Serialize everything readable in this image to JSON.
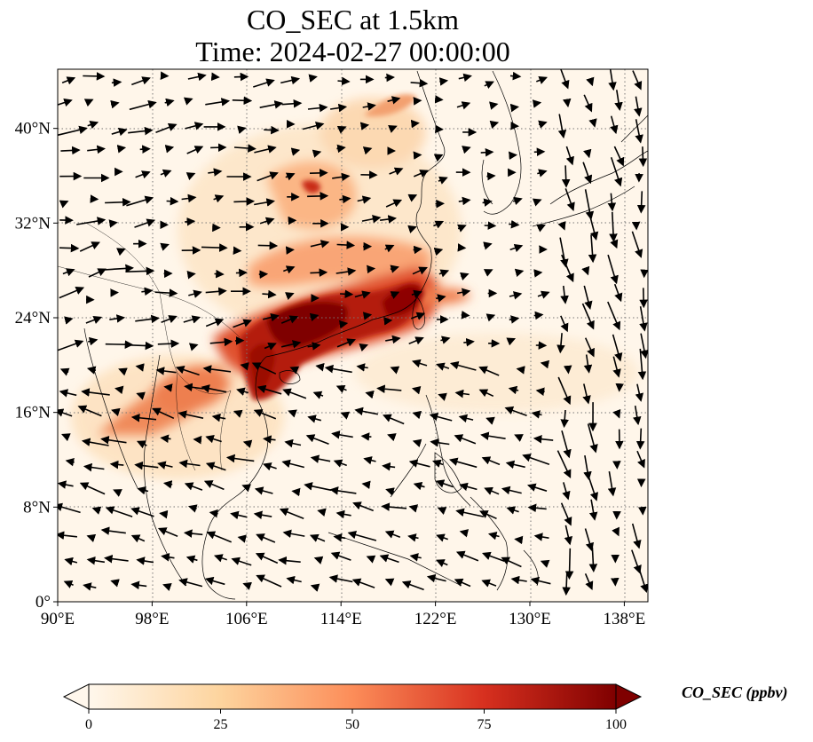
{
  "title_line1": "CO_SEC at 1.5km",
  "title_line2": "Time: 2024-02-27 00:00:00",
  "map": {
    "lon_range": [
      90,
      140
    ],
    "lat_range": [
      0,
      45
    ],
    "x_ticks": [
      {
        "value": 90,
        "label": "90°E"
      },
      {
        "value": 98,
        "label": "98°E"
      },
      {
        "value": 106,
        "label": "106°E"
      },
      {
        "value": 114,
        "label": "114°E"
      },
      {
        "value": 122,
        "label": "122°E"
      },
      {
        "value": 130,
        "label": "130°E"
      },
      {
        "value": 138,
        "label": "138°E"
      }
    ],
    "y_ticks": [
      {
        "value": 0,
        "label": "0°"
      },
      {
        "value": 8,
        "label": "8°N"
      },
      {
        "value": 16,
        "label": "16°N"
      },
      {
        "value": 24,
        "label": "24°N"
      },
      {
        "value": 32,
        "label": "32°N"
      },
      {
        "value": 40,
        "label": "40°N"
      }
    ],
    "gridlines": "dotted"
  },
  "colorbar": {
    "label": "CO_SEC (ppbv)",
    "min": 0,
    "max": 100,
    "ticks": [
      "0",
      "25",
      "50",
      "75",
      "100"
    ],
    "colors": [
      "#fff7ec",
      "#fdd49e",
      "#fc8d59",
      "#d7301f",
      "#7f0000"
    ],
    "extend": "both"
  }
}
